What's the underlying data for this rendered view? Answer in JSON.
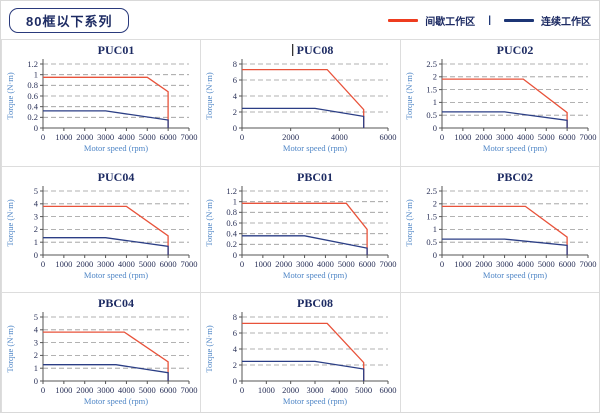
{
  "header": {
    "title": "80框以下系列",
    "legend": [
      {
        "label": "间歇工作区",
        "color": "#ee3c1f"
      },
      {
        "label": "连续工作区",
        "color": "#1c3575"
      }
    ],
    "legend_separator": "|"
  },
  "colors": {
    "title_navy": "#1d2b63",
    "axis_label_blue": "#4f86c6",
    "grid_gray": "#999999",
    "table_border": "#dddddd",
    "chart_red": "#e8523a",
    "chart_blue": "#2b3e85"
  },
  "chart_data": [
    {
      "type": "line",
      "title": "PUC01",
      "xlabel": "Motor speed (rpm)",
      "ylabel": "Torque (N·m)",
      "xlim": [
        0,
        7000
      ],
      "xticks": [
        0,
        1000,
        2000,
        3000,
        4000,
        5000,
        6000,
        7000
      ],
      "ylim": [
        0,
        1.2
      ],
      "yticks": [
        0,
        0.2,
        0.4,
        0.6,
        0.8,
        1,
        1.2
      ],
      "grid": "horizontal-dashed",
      "legend_position": "none",
      "series": [
        {
          "name": "间歇工作区",
          "color": "#e8523a",
          "points": [
            [
              0,
              0.95
            ],
            [
              5000,
              0.95
            ],
            [
              6000,
              0.68
            ],
            [
              6000,
              0
            ]
          ]
        },
        {
          "name": "连续工作区",
          "color": "#2b3e85",
          "points": [
            [
              0,
              0.32
            ],
            [
              3000,
              0.32
            ],
            [
              6000,
              0.15
            ],
            [
              6000,
              0
            ]
          ]
        }
      ]
    },
    {
      "type": "line",
      "title": "PUC08",
      "cursor": true,
      "xlabel": "Motor speed (rpm)",
      "ylabel": "Torque (N·m)",
      "xlim": [
        0,
        6000
      ],
      "xticks": [
        0,
        2000,
        4000,
        6000
      ],
      "ylim": [
        0,
        8
      ],
      "yticks": [
        0,
        2,
        4,
        6,
        8
      ],
      "grid": "horizontal-dashed",
      "legend_position": "none",
      "series": [
        {
          "name": "间歇工作区",
          "color": "#e8523a",
          "points": [
            [
              0,
              7.3
            ],
            [
              3500,
              7.3
            ],
            [
              5000,
              2.3
            ],
            [
              5000,
              0
            ]
          ]
        },
        {
          "name": "连续工作区",
          "color": "#2b3e85",
          "points": [
            [
              0,
              2.45
            ],
            [
              3000,
              2.45
            ],
            [
              5000,
              1.45
            ],
            [
              5000,
              0
            ]
          ]
        }
      ]
    },
    {
      "type": "line",
      "title": "PUC02",
      "xlabel": "Motor speed (rpm)",
      "ylabel": "Torque (N·m)",
      "xlim": [
        0,
        7000
      ],
      "xticks": [
        0,
        1000,
        2000,
        3000,
        4000,
        5000,
        6000,
        7000
      ],
      "ylim": [
        0,
        2.5
      ],
      "yticks": [
        0,
        0.5,
        1,
        1.5,
        2,
        2.5
      ],
      "grid": "horizontal-dashed",
      "legend_position": "none",
      "series": [
        {
          "name": "间歇工作区",
          "color": "#e8523a",
          "points": [
            [
              0,
              1.91
            ],
            [
              3900,
              1.91
            ],
            [
              6000,
              0.6
            ],
            [
              6000,
              0
            ]
          ]
        },
        {
          "name": "连续工作区",
          "color": "#2b3e85",
          "points": [
            [
              0,
              0.63
            ],
            [
              3000,
              0.63
            ],
            [
              6000,
              0.3
            ],
            [
              6000,
              0
            ]
          ]
        }
      ]
    },
    {
      "type": "line",
      "title": "PUC04",
      "xlabel": "Motor speed (rpm)",
      "ylabel": "Torque (N·m)",
      "xlim": [
        0,
        7000
      ],
      "xticks": [
        0,
        1000,
        2000,
        3000,
        4000,
        5000,
        6000,
        7000
      ],
      "ylim": [
        0,
        5
      ],
      "yticks": [
        0,
        1,
        2,
        3,
        4,
        5
      ],
      "grid": "horizontal-dashed",
      "legend_position": "none",
      "series": [
        {
          "name": "间歇工作区",
          "color": "#e8523a",
          "points": [
            [
              0,
              3.8
            ],
            [
              4000,
              3.8
            ],
            [
              6000,
              1.5
            ],
            [
              6000,
              0
            ]
          ]
        },
        {
          "name": "连续工作区",
          "color": "#2b3e85",
          "points": [
            [
              0,
              1.35
            ],
            [
              3000,
              1.35
            ],
            [
              6000,
              0.68
            ],
            [
              6000,
              0
            ]
          ]
        }
      ]
    },
    {
      "type": "line",
      "title": "PBC01",
      "xlabel": "Motor speed (rpm)",
      "ylabel": "Torque (N·m)",
      "xlim": [
        0,
        7000
      ],
      "xticks": [
        0,
        1000,
        2000,
        3000,
        4000,
        5000,
        6000,
        7000
      ],
      "ylim": [
        0,
        1.2
      ],
      "yticks": [
        0,
        0.2,
        0.4,
        0.6,
        0.8,
        1,
        1.2
      ],
      "grid": "horizontal-dashed",
      "legend_position": "none",
      "series": [
        {
          "name": "间歇工作区",
          "color": "#e8523a",
          "points": [
            [
              0,
              0.97
            ],
            [
              5000,
              0.97
            ],
            [
              6000,
              0.48
            ],
            [
              6000,
              0
            ]
          ]
        },
        {
          "name": "连续工作区",
          "color": "#2b3e85",
          "points": [
            [
              0,
              0.36
            ],
            [
              3000,
              0.36
            ],
            [
              6000,
              0.13
            ],
            [
              6000,
              0
            ]
          ]
        }
      ]
    },
    {
      "type": "line",
      "title": "PBC02",
      "xlabel": "Motor speed (rpm)",
      "ylabel": "Torque (N·m)",
      "xlim": [
        0,
        7000
      ],
      "xticks": [
        0,
        1000,
        2000,
        3000,
        4000,
        5000,
        6000,
        7000
      ],
      "ylim": [
        0,
        2.5
      ],
      "yticks": [
        0,
        0.5,
        1,
        1.5,
        2,
        2.5
      ],
      "grid": "horizontal-dashed",
      "legend_position": "none",
      "series": [
        {
          "name": "间歇工作区",
          "color": "#e8523a",
          "points": [
            [
              0,
              1.9
            ],
            [
              4000,
              1.9
            ],
            [
              6000,
              0.7
            ],
            [
              6000,
              0
            ]
          ]
        },
        {
          "name": "连续工作区",
          "color": "#2b3e85",
          "points": [
            [
              0,
              0.62
            ],
            [
              3000,
              0.62
            ],
            [
              6000,
              0.38
            ],
            [
              6000,
              0
            ]
          ]
        }
      ]
    },
    {
      "type": "line",
      "title": "PBC04",
      "xlabel": "Motor speed (rpm)",
      "ylabel": "Torque (N·m)",
      "xlim": [
        0,
        7000
      ],
      "xticks": [
        0,
        1000,
        2000,
        3000,
        4000,
        5000,
        6000,
        7000
      ],
      "ylim": [
        0,
        5
      ],
      "yticks": [
        0,
        1,
        2,
        3,
        4,
        5
      ],
      "grid": "horizontal-dashed",
      "legend_position": "none",
      "series": [
        {
          "name": "间歇工作区",
          "color": "#e8523a",
          "points": [
            [
              0,
              3.82
            ],
            [
              3900,
              3.82
            ],
            [
              6000,
              1.5
            ],
            [
              6000,
              0
            ]
          ]
        },
        {
          "name": "连续工作区",
          "color": "#2b3e85",
          "points": [
            [
              0,
              1.27
            ],
            [
              3500,
              1.27
            ],
            [
              6000,
              0.65
            ],
            [
              6000,
              0
            ]
          ]
        }
      ]
    },
    {
      "type": "line",
      "title": "PBC08",
      "xlabel": "Motor speed (rpm)",
      "ylabel": "Torque (N·m)",
      "xlim": [
        0,
        6000
      ],
      "xticks": [
        0,
        1000,
        2000,
        3000,
        4000,
        5000,
        6000
      ],
      "ylim": [
        0,
        8
      ],
      "yticks": [
        0,
        2,
        4,
        6,
        8
      ],
      "grid": "horizontal-dashed",
      "legend_position": "none",
      "series": [
        {
          "name": "间歇工作区",
          "color": "#e8523a",
          "points": [
            [
              0,
              7.2
            ],
            [
              3500,
              7.2
            ],
            [
              5000,
              2.3
            ],
            [
              5000,
              0
            ]
          ]
        },
        {
          "name": "连续工作区",
          "color": "#2b3e85",
          "points": [
            [
              0,
              2.45
            ],
            [
              3000,
              2.45
            ],
            [
              5000,
              1.5
            ],
            [
              5000,
              0
            ]
          ]
        }
      ]
    }
  ]
}
